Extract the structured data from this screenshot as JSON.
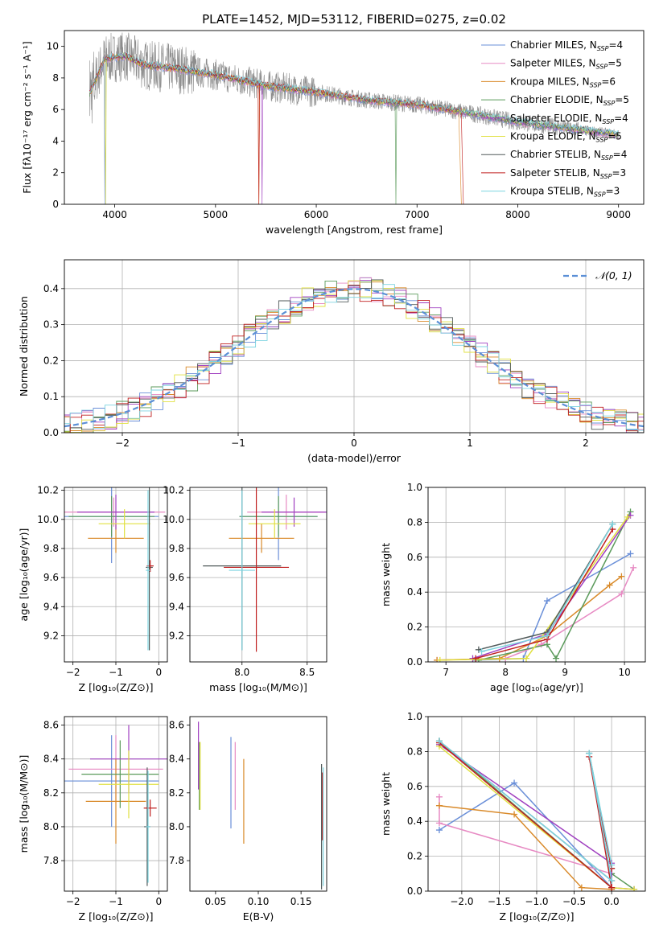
{
  "figure_title": "PLATE=1452, MJD=53112, FIBERID=0275, z=0.02",
  "legend_entries": [
    {
      "base": "Chabrier MILES, N",
      "sub": "SSP",
      "tail": "=4",
      "color": "#6a8fd8"
    },
    {
      "base": "Salpeter MILES, N",
      "sub": "SSP",
      "tail": "=5",
      "color": "#e78ac3"
    },
    {
      "base": "Kroupa MILES, N",
      "sub": "SSP",
      "tail": "=6",
      "color": "#d98a2a"
    },
    {
      "base": "Chabrier ELODIE, N",
      "sub": "SSP",
      "tail": "=5",
      "color": "#5a9a5a"
    },
    {
      "base": "Salpeter ELODIE, N",
      "sub": "SSP",
      "tail": "=4",
      "color": "#a040c0"
    },
    {
      "base": "Kroupa ELODIE, N",
      "sub": "SSP",
      "tail": "=5",
      "color": "#e0e040"
    },
    {
      "base": "Chabrier STELIB, N",
      "sub": "SSP",
      "tail": "=4",
      "color": "#505a5a"
    },
    {
      "base": "Salpeter STELIB, N",
      "sub": "SSP",
      "tail": "=3",
      "color": "#c02020"
    },
    {
      "base": "Kroupa STELIB, N",
      "sub": "SSP",
      "tail": "=3",
      "color": "#7dd4e0"
    }
  ],
  "chart_data": [
    {
      "type": "line",
      "id": "spectrum",
      "xlabel": "wavelength [Angstrom, rest frame]",
      "ylabel": "Flux [fλ10⁻¹⁷ erg cm⁻² s⁻¹ A⁻¹]",
      "xlim": [
        3500,
        9250
      ],
      "ylim": [
        0,
        11
      ],
      "xticks": [
        4000,
        5000,
        6000,
        7000,
        8000,
        9000
      ],
      "yticks": [
        0,
        2,
        4,
        6,
        8,
        10
      ],
      "observed_color": "#8c8c8c",
      "continuum": [
        [
          3750,
          7.0
        ],
        [
          3900,
          9.2
        ],
        [
          4100,
          9.4
        ],
        [
          4300,
          8.8
        ],
        [
          4600,
          8.6
        ],
        [
          5000,
          8.2
        ],
        [
          5500,
          7.5
        ],
        [
          6000,
          7.1
        ],
        [
          6500,
          6.6
        ],
        [
          7000,
          6.3
        ],
        [
          7500,
          5.8
        ],
        [
          8000,
          5.2
        ],
        [
          8500,
          4.8
        ],
        [
          9000,
          4.4
        ]
      ],
      "grid": false
    },
    {
      "type": "bar",
      "id": "residual-histogram",
      "xlabel": "(data-model)/error",
      "ylabel": "Normed distribution",
      "xlim": [
        -2.5,
        2.5
      ],
      "ylim": [
        0,
        0.48
      ],
      "xticks": [
        -2,
        -1,
        0,
        1,
        2
      ],
      "yticks": [
        0.0,
        0.1,
        0.2,
        0.3,
        0.4
      ],
      "bin_width": 0.1,
      "gaussian_label": "𝒩(0, 1)",
      "gaussian_color": "#5b8fd6",
      "legend": "top-right",
      "grid": true
    },
    {
      "type": "scatter",
      "id": "age-vs-Z",
      "xlabel": "Z [log₁₀(Z/Z⊙)]",
      "ylabel": "age  [log₁₀(age/yr)]",
      "xlim": [
        -2.2,
        0.2
      ],
      "ylim": [
        9.02,
        10.22
      ],
      "xticks": [
        -2,
        -1,
        0
      ],
      "yticks": [
        9.2,
        9.4,
        9.6,
        9.8,
        10.0,
        10.2
      ],
      "grid": true,
      "points": [
        {
          "x": -1.1,
          "y": 10.02,
          "xerr": 1.1,
          "yerr": 0.32,
          "color": "#6a8fd8"
        },
        {
          "x": -1.05,
          "y": 10.05,
          "xerr": 1.2,
          "yerr": 0.1,
          "color": "#e78ac3"
        },
        {
          "x": -1.0,
          "y": 9.87,
          "xerr": 0.65,
          "yerr": 0.1,
          "color": "#d98a2a"
        },
        {
          "x": -1.1,
          "y": 10.02,
          "xerr": 1.0,
          "yerr": 0.14,
          "color": "#5a9a5a"
        },
        {
          "x": -1.0,
          "y": 10.05,
          "xerr": 0.9,
          "yerr": 0.12,
          "color": "#a040c0"
        },
        {
          "x": -0.8,
          "y": 9.97,
          "xerr": 0.6,
          "yerr": 0.1,
          "color": "#e0e040"
        },
        {
          "x": -0.22,
          "y": 9.67,
          "xerr": 0.08,
          "yerr": 0.57,
          "color": "#505a5a"
        },
        {
          "x": -0.2,
          "y": 9.68,
          "xerr": 0.08,
          "yerr": 0.04,
          "color": "#c02020"
        },
        {
          "x": -0.25,
          "y": 9.65,
          "xerr": 0.05,
          "yerr": 0.55,
          "color": "#7dd4e0"
        }
      ]
    },
    {
      "type": "scatter",
      "id": "age-vs-mass",
      "xlabel": "mass [log₁₀(M/M⊙)]",
      "ylabel": "",
      "xlim": [
        7.6,
        8.65
      ],
      "ylim": [
        9.02,
        10.22
      ],
      "xticks": [
        8.0,
        8.5
      ],
      "yticks": [
        9.2,
        9.4,
        9.6,
        9.8,
        10.0,
        10.2
      ],
      "grid": true,
      "points": [
        {
          "x": 8.28,
          "y": 10.02,
          "xerr": 0.3,
          "yerr": 0.3,
          "color": "#6a8fd8"
        },
        {
          "x": 8.34,
          "y": 10.05,
          "xerr": 0.3,
          "yerr": 0.12,
          "color": "#e78ac3"
        },
        {
          "x": 8.15,
          "y": 9.87,
          "xerr": 0.25,
          "yerr": 0.1,
          "color": "#d98a2a"
        },
        {
          "x": 8.28,
          "y": 10.02,
          "xerr": 0.3,
          "yerr": 0.14,
          "color": "#5a9a5a"
        },
        {
          "x": 8.4,
          "y": 10.05,
          "xerr": 0.25,
          "yerr": 0.1,
          "color": "#a040c0"
        },
        {
          "x": 8.25,
          "y": 9.97,
          "xerr": 0.2,
          "yerr": 0.1,
          "color": "#e0e040"
        },
        {
          "x": 8.0,
          "y": 9.68,
          "xerr": 0.3,
          "yerr": 0.58,
          "color": "#505a5a"
        },
        {
          "x": 8.11,
          "y": 9.67,
          "xerr": 0.25,
          "yerr": 0.58,
          "color": "#c02020"
        },
        {
          "x": 8.0,
          "y": 9.65,
          "xerr": 0.1,
          "yerr": 0.55,
          "color": "#7dd4e0"
        }
      ]
    },
    {
      "type": "line",
      "id": "mass-weight-vs-age",
      "xlabel": "age  [log₁₀(age/yr)]",
      "ylabel": "mass weight",
      "xlim": [
        6.7,
        10.35
      ],
      "ylim": [
        0,
        1.0
      ],
      "xticks": [
        7,
        8,
        9,
        10
      ],
      "yticks": [
        0.0,
        0.2,
        0.4,
        0.6,
        0.8,
        1.0
      ],
      "grid": true,
      "series": [
        {
          "color": "#6a8fd8",
          "x": [
            7.5,
            8.3,
            8.7,
            10.1
          ],
          "y": [
            0.01,
            0.02,
            0.35,
            0.62
          ]
        },
        {
          "color": "#e78ac3",
          "x": [
            6.85,
            8.0,
            8.6,
            9.95,
            10.15
          ],
          "y": [
            0.01,
            0.02,
            0.1,
            0.39,
            0.54
          ]
        },
        {
          "color": "#d98a2a",
          "x": [
            6.85,
            7.9,
            8.7,
            9.75,
            9.95
          ],
          "y": [
            0.01,
            0.02,
            0.15,
            0.44,
            0.49
          ]
        },
        {
          "color": "#5a9a5a",
          "x": [
            7.55,
            8.7,
            8.85,
            10.1
          ],
          "y": [
            0.01,
            0.1,
            0.02,
            0.86
          ]
        },
        {
          "color": "#a040c0",
          "x": [
            7.45,
            8.7,
            10.1
          ],
          "y": [
            0.02,
            0.16,
            0.84
          ]
        },
        {
          "color": "#e0e040",
          "x": [
            6.9,
            8.35,
            10.05
          ],
          "y": [
            0.01,
            0.02,
            0.83
          ]
        },
        {
          "color": "#505a5a",
          "x": [
            7.55,
            8.7,
            9.8
          ],
          "y": [
            0.07,
            0.17,
            0.79
          ]
        },
        {
          "color": "#c02020",
          "x": [
            7.5,
            8.7,
            9.8
          ],
          "y": [
            0.02,
            0.13,
            0.76
          ]
        },
        {
          "color": "#7dd4e0",
          "x": [
            7.6,
            8.7,
            9.8
          ],
          "y": [
            0.06,
            0.15,
            0.79
          ]
        }
      ]
    },
    {
      "type": "scatter",
      "id": "mass-vs-Z",
      "xlabel": "Z [log₁₀(Z/Z⊙)]",
      "ylabel": "mass [log₁₀(M/M⊙)]",
      "xlim": [
        -2.2,
        0.2
      ],
      "ylim": [
        7.62,
        8.65
      ],
      "xticks": [
        -2,
        -1,
        0
      ],
      "yticks": [
        7.8,
        8.0,
        8.2,
        8.4,
        8.6
      ],
      "grid": true,
      "points": [
        {
          "x": -1.1,
          "y": 8.27,
          "xerr": 1.1,
          "yerr": 0.27,
          "color": "#6a8fd8"
        },
        {
          "x": -1.0,
          "y": 8.34,
          "xerr": 1.1,
          "yerr": 0.2,
          "color": "#e78ac3"
        },
        {
          "x": -1.0,
          "y": 8.15,
          "xerr": 0.7,
          "yerr": 0.25,
          "color": "#d98a2a"
        },
        {
          "x": -0.9,
          "y": 8.31,
          "xerr": 0.9,
          "yerr": 0.2,
          "color": "#5a9a5a"
        },
        {
          "x": -0.7,
          "y": 8.4,
          "xerr": 0.9,
          "yerr": 0.2,
          "color": "#a040c0"
        },
        {
          "x": -0.7,
          "y": 8.25,
          "xerr": 0.7,
          "yerr": 0.2,
          "color": "#e0e040"
        },
        {
          "x": -0.27,
          "y": 8.0,
          "xerr": 0.07,
          "yerr": 0.35,
          "color": "#505a5a"
        },
        {
          "x": -0.2,
          "y": 8.11,
          "xerr": 0.15,
          "yerr": 0.05,
          "color": "#c02020"
        },
        {
          "x": -0.25,
          "y": 8.0,
          "xerr": 0.05,
          "yerr": 0.33,
          "color": "#7dd4e0"
        }
      ]
    },
    {
      "type": "scatter",
      "id": "mass-vs-ebv",
      "xlabel": "E(B-V)",
      "ylabel": "",
      "xlim": [
        0.02,
        0.18
      ],
      "ylim": [
        7.62,
        8.65
      ],
      "xticks": [
        0.05,
        0.1,
        0.15
      ],
      "yticks": [
        7.8,
        8.0,
        8.2,
        8.4,
        8.6
      ],
      "grid": false,
      "points": [
        {
          "x": 0.068,
          "y": 8.26,
          "xerr": 0,
          "yerr": 0.27,
          "color": "#6a8fd8"
        },
        {
          "x": 0.073,
          "y": 8.3,
          "xerr": 0,
          "yerr": 0.2,
          "color": "#e78ac3"
        },
        {
          "x": 0.083,
          "y": 8.15,
          "xerr": 0,
          "yerr": 0.25,
          "color": "#d98a2a"
        },
        {
          "x": 0.031,
          "y": 8.3,
          "xerr": 0,
          "yerr": 0.2,
          "color": "#5a9a5a"
        },
        {
          "x": 0.03,
          "y": 8.42,
          "xerr": 0,
          "yerr": 0.2,
          "color": "#a040c0"
        },
        {
          "x": 0.032,
          "y": 8.3,
          "xerr": 0,
          "yerr": 0.2,
          "color": "#e0e040"
        },
        {
          "x": 0.174,
          "y": 8.0,
          "xerr": 0,
          "yerr": 0.37,
          "color": "#505a5a"
        },
        {
          "x": 0.175,
          "y": 8.12,
          "xerr": 0,
          "yerr": 0.2,
          "color": "#c02020"
        },
        {
          "x": 0.176,
          "y": 8.0,
          "xerr": 0,
          "yerr": 0.35,
          "color": "#7dd4e0"
        }
      ]
    },
    {
      "type": "line",
      "id": "mass-weight-vs-Z",
      "xlabel": "Z [log₁₀(Z/Z⊙)]",
      "ylabel": "mass weight",
      "xlim": [
        -2.45,
        0.45
      ],
      "ylim": [
        0,
        1.0
      ],
      "xticks": [
        -2.0,
        -1.5,
        -1.0,
        -0.5,
        0.0
      ],
      "yticks": [
        0.0,
        0.2,
        0.4,
        0.6,
        0.8,
        1.0
      ],
      "grid": true,
      "series": [
        {
          "color": "#6a8fd8",
          "x": [
            -2.3,
            -1.3,
            0.0
          ],
          "y": [
            0.35,
            0.62,
            0.02
          ]
        },
        {
          "color": "#e78ac3",
          "x": [
            -2.3,
            -2.3,
            0.0,
            0.0
          ],
          "y": [
            0.54,
            0.39,
            0.1,
            0.01
          ]
        },
        {
          "color": "#d98a2a",
          "x": [
            -2.3,
            -1.3,
            -0.4,
            0.0
          ],
          "y": [
            0.49,
            0.44,
            0.02,
            0.01
          ]
        },
        {
          "color": "#5a9a5a",
          "x": [
            -2.3,
            0.0,
            0.0,
            0.3
          ],
          "y": [
            0.86,
            0.02,
            0.1,
            0.01
          ]
        },
        {
          "color": "#a040c0",
          "x": [
            -2.3,
            0.0,
            0.0,
            0.3
          ],
          "y": [
            0.84,
            0.16,
            0.02,
            0.01
          ]
        },
        {
          "color": "#e0e040",
          "x": [
            -2.3,
            0.0,
            0.3
          ],
          "y": [
            0.83,
            0.02,
            0.01
          ]
        },
        {
          "color": "#505a5a",
          "x": [
            -2.3,
            0.0,
            -0.3,
            0.0
          ],
          "y": [
            0.86,
            0.06,
            0.79,
            0.13
          ]
        },
        {
          "color": "#c02020",
          "x": [
            -2.3,
            0.0,
            -0.3,
            0.0
          ],
          "y": [
            0.85,
            0.02,
            0.77,
            0.13
          ]
        },
        {
          "color": "#7dd4e0",
          "x": [
            -2.3,
            0.0,
            -0.3,
            0.0
          ],
          "y": [
            0.86,
            0.06,
            0.79,
            0.15
          ]
        }
      ]
    }
  ]
}
